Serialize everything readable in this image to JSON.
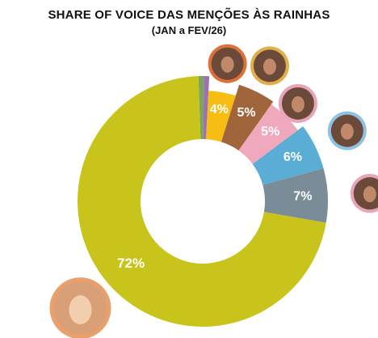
{
  "title": "SHARE OF VOICE DAS MENÇÕES ÀS RAINHAS",
  "subtitle": "(JAN a FEV/26)",
  "chart_data": {
    "type": "pie",
    "title": "SHARE OF VOICE DAS MENÇÕES ÀS RAINHAS",
    "subtitle": "(JAN a FEV/26)",
    "categories": [
      "",
      "",
      "",
      "",
      "",
      "",
      "",
      ""
    ],
    "values": [
      72,
      7,
      6,
      5,
      5,
      4,
      0.7,
      0.7
    ],
    "labels": [
      "72%",
      "7%",
      "6%",
      "5%",
      "5%",
      "4%",
      "",
      ""
    ],
    "colors": [
      "#c8c41b",
      "#7b8c99",
      "#5aaed6",
      "#f0a8bd",
      "#a0653a",
      "#f7bd12",
      "#9b72b0",
      "#7ea35f"
    ],
    "avatar_colors": [
      "#e9a06a",
      "#e8a4b8",
      "#8ec2e4",
      "#e8a4b8",
      "#e2b04a",
      "#e0703a",
      "",
      ""
    ],
    "donut": true
  }
}
